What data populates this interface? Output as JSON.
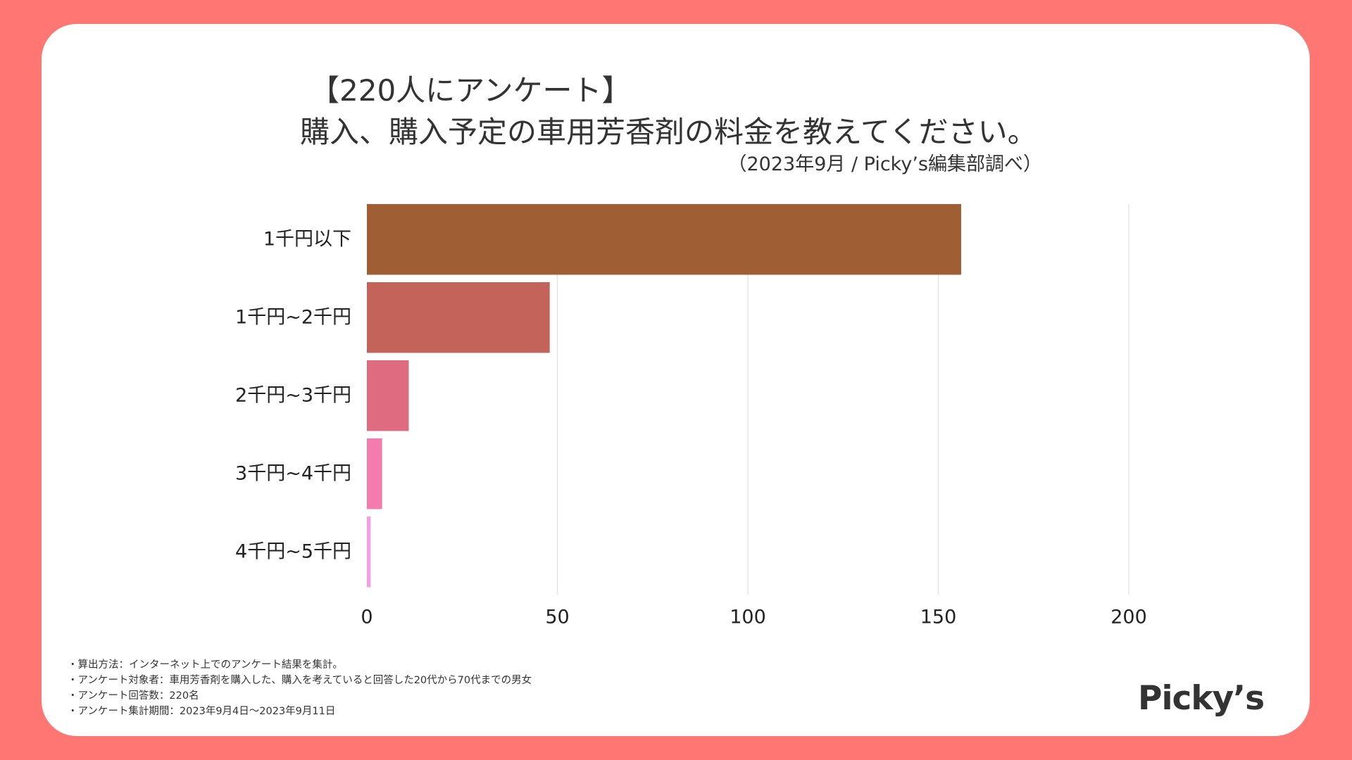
{
  "header": {
    "title_line1": "【220人にアンケート】",
    "title_line2": "購入、購入予定の車用芳香剤の料金を教えてください。",
    "subtitle": "（2023年9月 / Picky’s編集部調べ）"
  },
  "chart_data": {
    "type": "bar",
    "orientation": "horizontal",
    "title": "購入、購入予定の車用芳香剤の料金を教えてください。",
    "categories": [
      "1千円以下",
      "1千円~2千円",
      "2千円~3千円",
      "3千円~4千円",
      "4千円~5千円"
    ],
    "values": [
      156,
      48,
      11,
      4,
      1
    ],
    "colors": [
      "#a05e35",
      "#c4635a",
      "#df6b80",
      "#f47bae",
      "#f4a0e0"
    ],
    "xlim": [
      0,
      200
    ],
    "xticks": [
      0,
      50,
      100,
      150,
      200
    ],
    "xlabel": "",
    "ylabel": "",
    "grid": true
  },
  "notes": [
    "・算出方法：インターネット上でのアンケート結果を集計。",
    "・アンケート対象者：車用芳香剤を購入した、購入を考えていると回答した20代から70代までの男女",
    "・アンケート回答数：220名",
    "・アンケート集計期間：2023年9月4日〜2023年9月11日"
  ],
  "logo": {
    "text": "Picky’s"
  },
  "colors": {
    "background": "#ff7672",
    "card": "#ffffff",
    "text": "#333333",
    "grid": "#e0e0e0"
  }
}
